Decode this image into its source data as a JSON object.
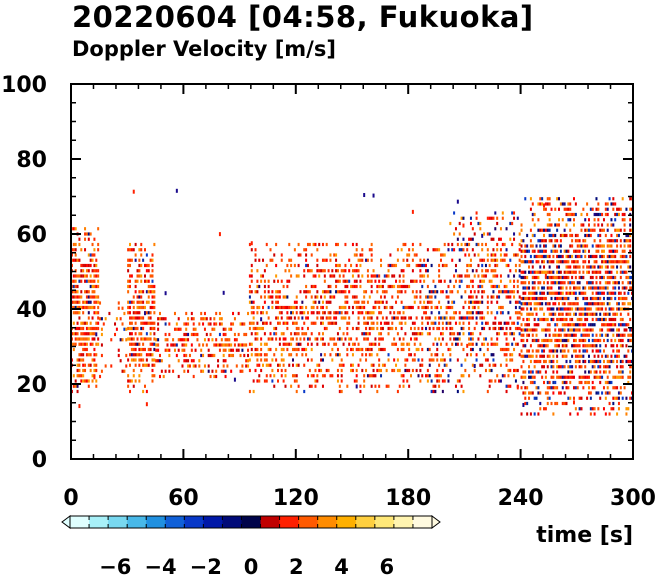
{
  "chart_data": {
    "type": "scatter",
    "title": "20220604 [04:58, Fukuoka]",
    "subtitle": "Doppler Velocity [m/s]",
    "xlabel": "time [s]",
    "ylabel": "",
    "xlim": [
      0,
      300
    ],
    "ylim": [
      0,
      100
    ],
    "x_ticks": [
      0,
      60,
      120,
      180,
      240,
      300
    ],
    "y_ticks": [
      0,
      20,
      40,
      60,
      80,
      100
    ],
    "grid": false,
    "colorbar": {
      "range": [
        -8,
        8
      ],
      "ticks": [
        -6,
        -4,
        -2,
        0,
        2,
        4,
        6
      ],
      "tick_labels": [
        "−6",
        "−4",
        "−2",
        "0",
        "2",
        "4",
        "6"
      ],
      "colors": [
        "#e0ffff",
        "#a8f0f8",
        "#78d8f0",
        "#48b8e8",
        "#2090e0",
        "#1060d8",
        "#0838c8",
        "#0018a8",
        "#000a78",
        "#00044a",
        "#c00000",
        "#ff2000",
        "#ff5a00",
        "#ff8c00",
        "#ffb000",
        "#ffd040",
        "#ffe878",
        "#fff4b0",
        "#fffae0"
      ]
    },
    "density_profile": [
      {
        "t_range": [
          0,
          15
        ],
        "height_range": [
          18,
          62
        ],
        "note": "dense"
      },
      {
        "t_range": [
          15,
          30
        ],
        "height_range": [
          22,
          44
        ],
        "note": "sparse"
      },
      {
        "t_range": [
          30,
          45
        ],
        "height_range": [
          18,
          58
        ],
        "note": "dense"
      },
      {
        "t_range": [
          45,
          95
        ],
        "height_range": [
          22,
          40
        ],
        "note": "moderate"
      },
      {
        "t_range": [
          95,
          200
        ],
        "height_range": [
          18,
          58
        ],
        "note": "moderate"
      },
      {
        "t_range": [
          200,
          240
        ],
        "height_range": [
          18,
          66
        ],
        "note": "moderate"
      },
      {
        "t_range": [
          240,
          300
        ],
        "height_range": [
          12,
          70
        ],
        "note": "dense"
      }
    ]
  }
}
